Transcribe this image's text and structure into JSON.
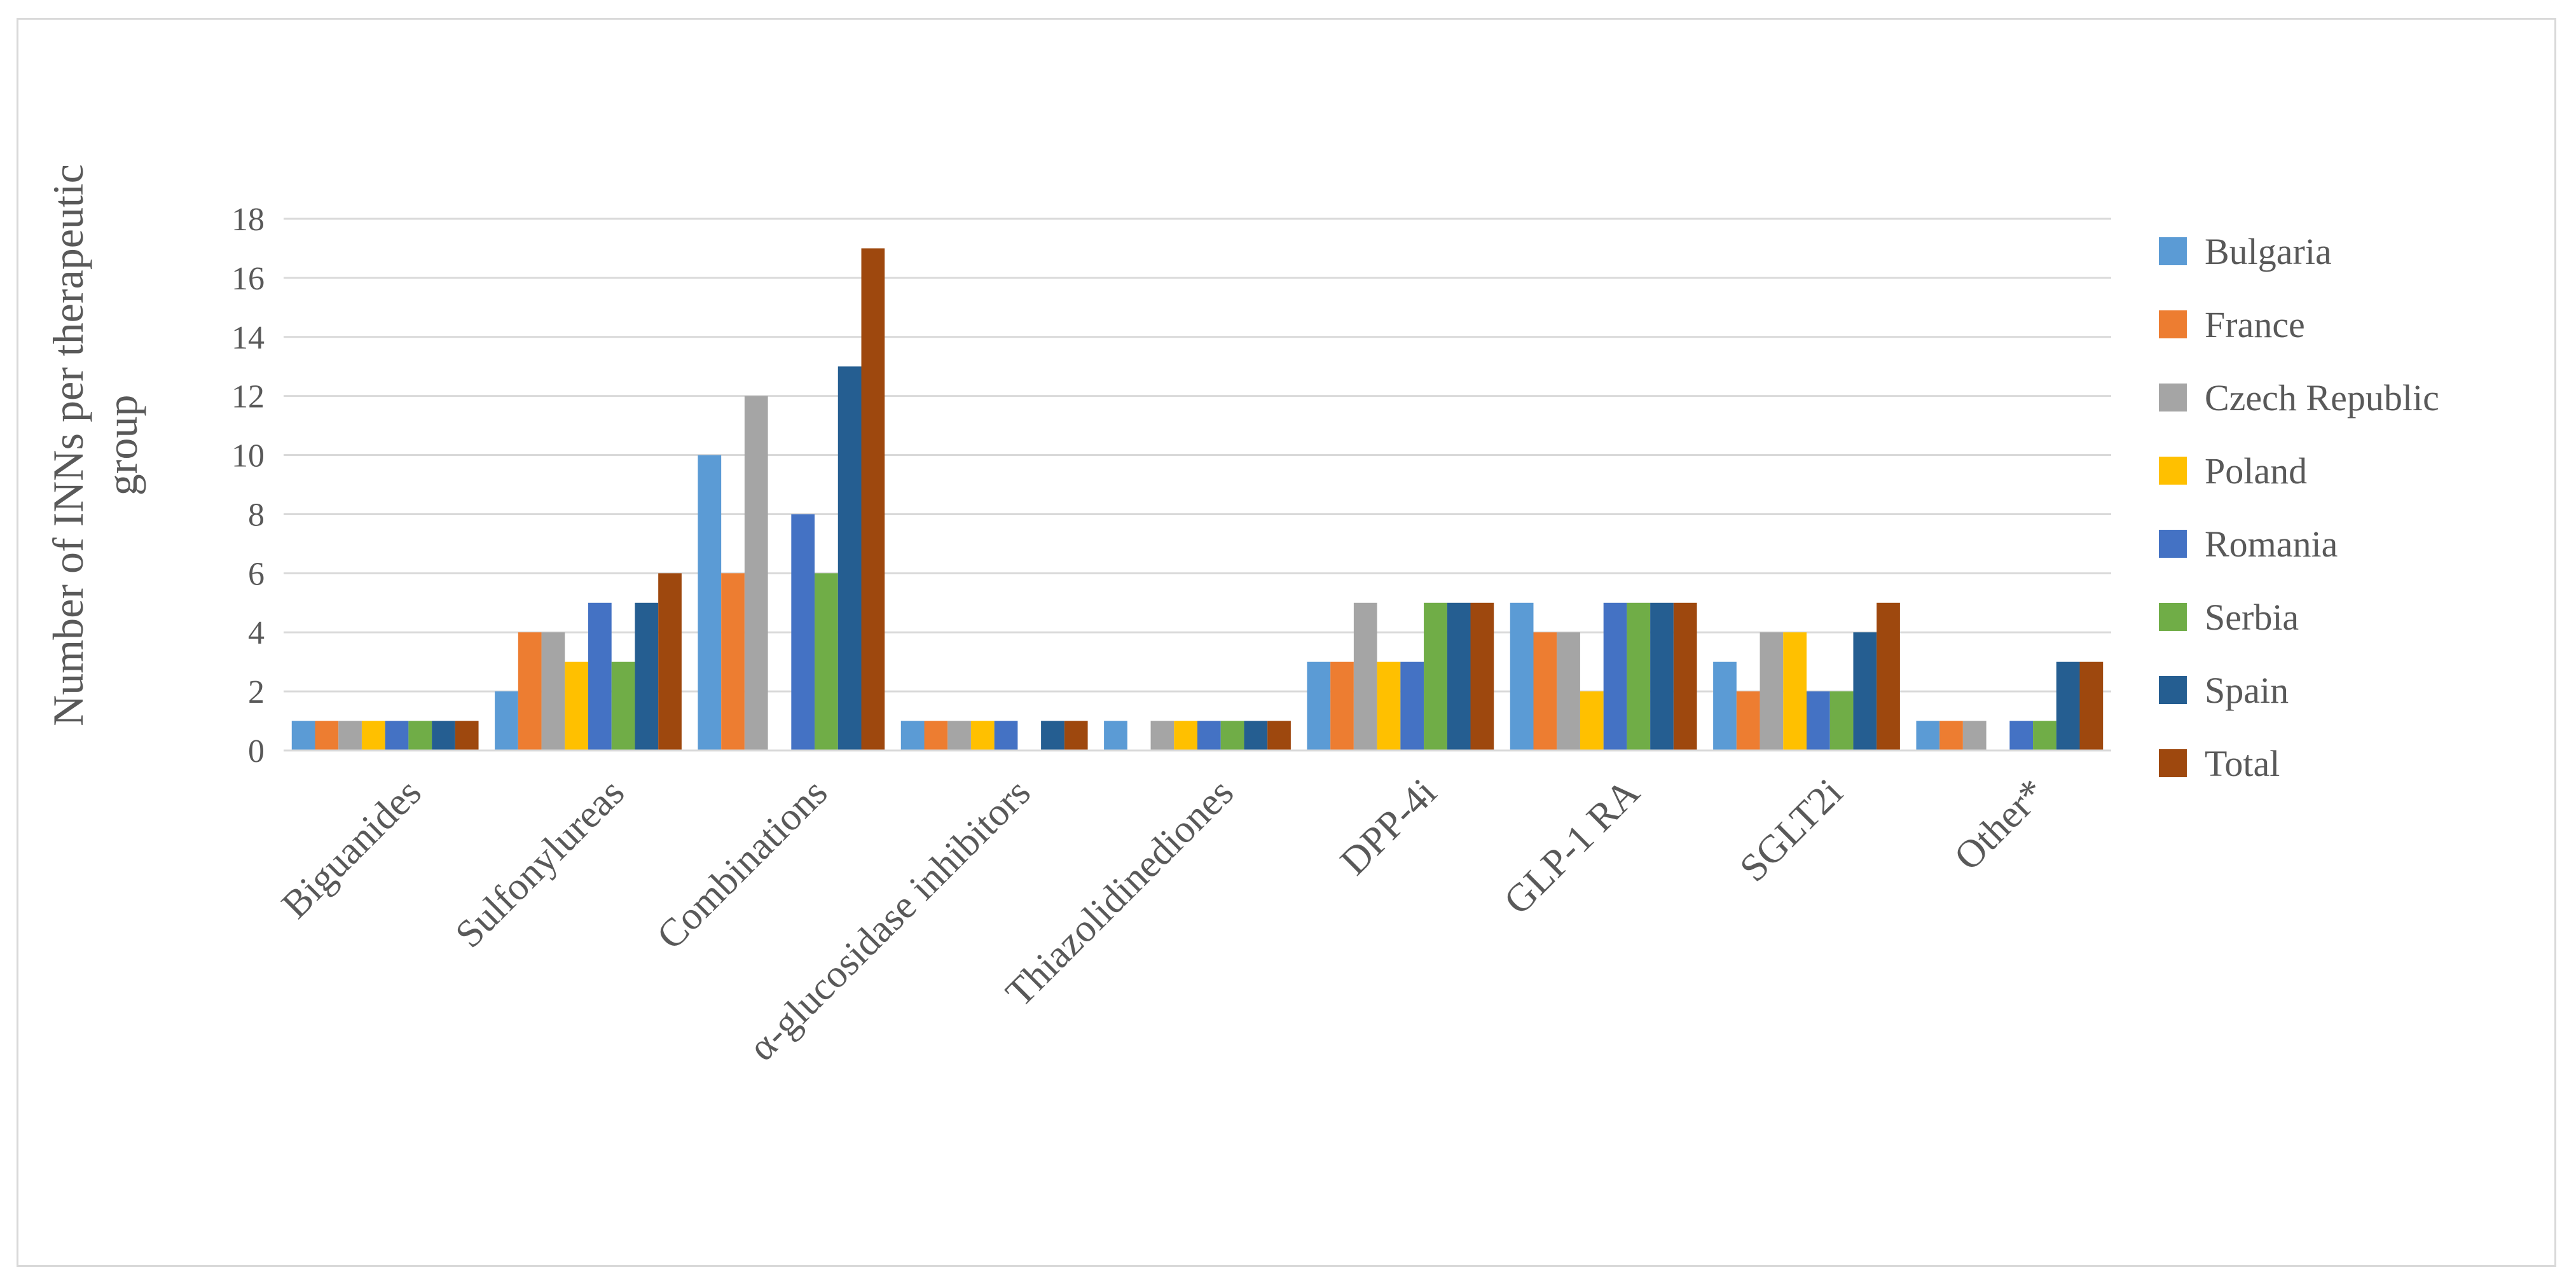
{
  "chart_data": {
    "type": "bar",
    "title": "",
    "xlabel": "",
    "ylabel": "Number of INNs per therapeutic group",
    "ylim": [
      0,
      18
    ],
    "yticks": [
      0,
      2,
      4,
      6,
      8,
      10,
      12,
      14,
      16,
      18
    ],
    "grid": true,
    "legend_position": "right",
    "categories": [
      "Biguanides",
      "Sulfonylureas",
      "Combinations",
      "α-glucosidase inhibitors",
      "Thiazolidinediones",
      "DPP-4i",
      "GLP-1 RA",
      "SGLT2i",
      "Other*"
    ],
    "series": [
      {
        "name": "Bulgaria",
        "color": "#5b9bd5",
        "values": [
          1,
          2,
          10,
          1,
          1,
          3,
          5,
          3,
          1
        ]
      },
      {
        "name": "France",
        "color": "#ed7d31",
        "values": [
          1,
          4,
          6,
          1,
          0,
          3,
          4,
          2,
          1
        ]
      },
      {
        "name": "Czech Republic",
        "color": "#a5a5a5",
        "values": [
          1,
          4,
          12,
          1,
          1,
          5,
          4,
          4,
          1
        ]
      },
      {
        "name": "Poland",
        "color": "#ffc000",
        "values": [
          1,
          3,
          0,
          1,
          1,
          3,
          2,
          4,
          0
        ]
      },
      {
        "name": "Romania",
        "color": "#4472c4",
        "values": [
          1,
          5,
          8,
          1,
          1,
          3,
          5,
          2,
          1
        ]
      },
      {
        "name": "Serbia",
        "color": "#70ad47",
        "values": [
          1,
          3,
          6,
          0,
          1,
          5,
          5,
          2,
          1
        ]
      },
      {
        "name": "Spain",
        "color": "#255e91",
        "values": [
          1,
          5,
          13,
          1,
          1,
          5,
          5,
          4,
          3
        ]
      },
      {
        "name": "Total",
        "color": "#9e480e",
        "values": [
          1,
          6,
          17,
          1,
          1,
          5,
          5,
          5,
          3
        ]
      }
    ]
  }
}
